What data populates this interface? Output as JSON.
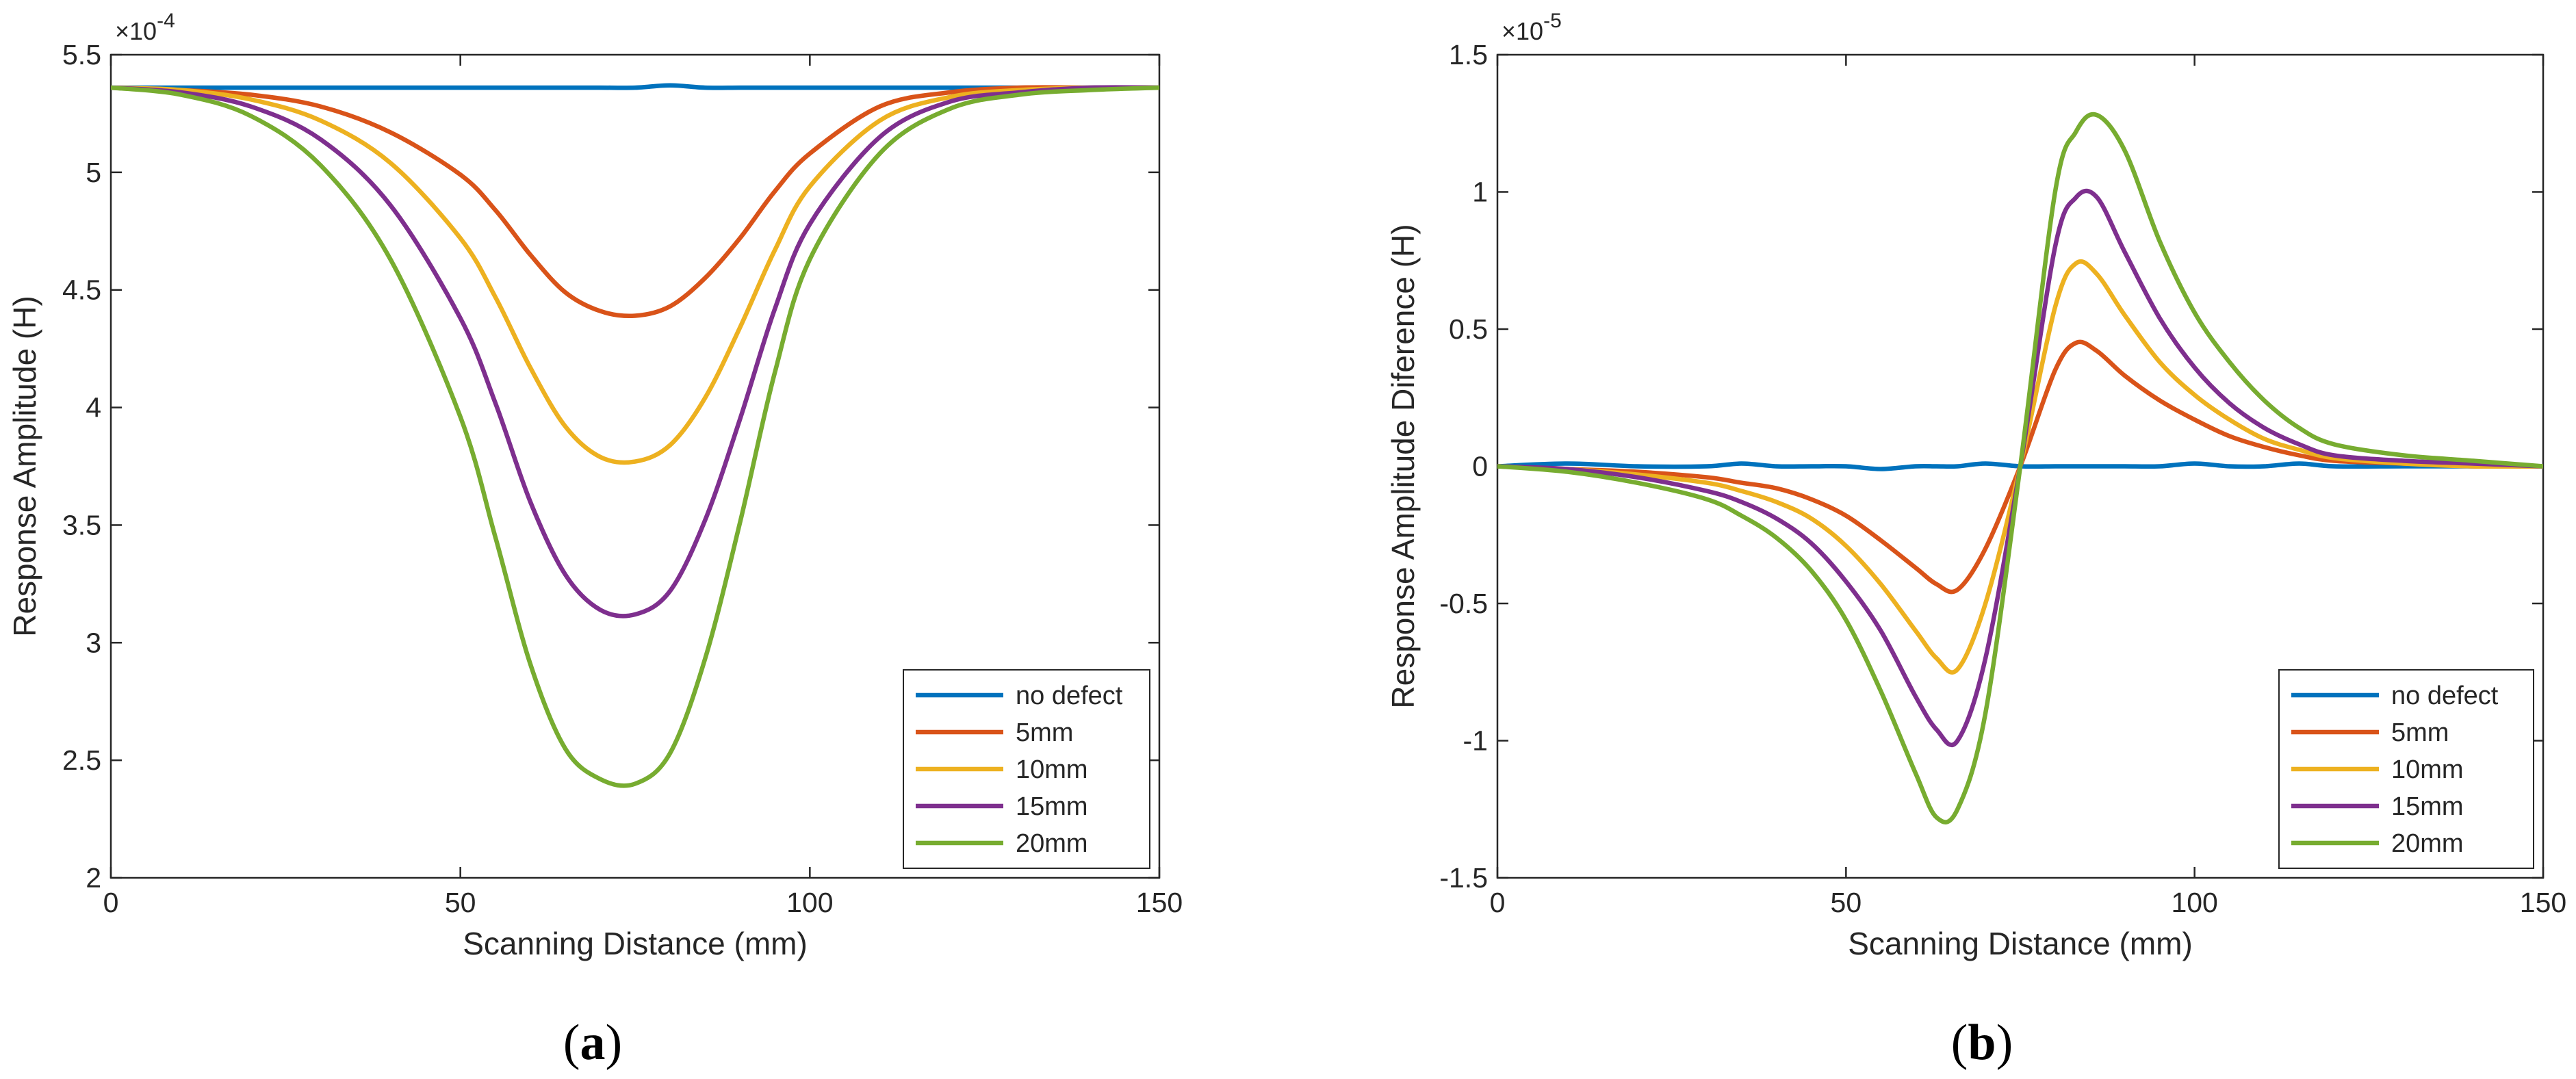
{
  "chart_data": [
    {
      "id": "a",
      "type": "line",
      "caption_paren_open": "(",
      "caption_letter": "a",
      "caption_paren_close": ")",
      "xlabel": "Scanning Distance (mm)",
      "ylabel": "Response Amplitude (H)",
      "exponent_base": "×10",
      "exponent_power": "-4",
      "xlim": [
        0,
        150
      ],
      "ylim": [
        2,
        5.5
      ],
      "xticks": [
        0,
        50,
        100,
        150
      ],
      "xtick_labels": [
        "0",
        "50",
        "100",
        "150"
      ],
      "yticks": [
        2,
        2.5,
        3,
        3.5,
        4,
        4.5,
        5,
        5.5
      ],
      "ytick_labels": [
        "2",
        "2.5",
        "3",
        "3.5",
        "4",
        "4.5",
        "5",
        "5.5"
      ],
      "grid": false,
      "legend_position": "bottom-right",
      "x": [
        0,
        10,
        20,
        30,
        40,
        50,
        55,
        60,
        65,
        70,
        75,
        80,
        85,
        90,
        95,
        100,
        110,
        120,
        130,
        140,
        150
      ],
      "series": [
        {
          "name": "no defect",
          "color": "#0072BD",
          "values": [
            5.36,
            5.36,
            5.36,
            5.36,
            5.36,
            5.36,
            5.36,
            5.36,
            5.36,
            5.36,
            5.36,
            5.37,
            5.36,
            5.36,
            5.36,
            5.36,
            5.36,
            5.36,
            5.36,
            5.36,
            5.36
          ]
        },
        {
          "name": "5mm",
          "color": "#D95319",
          "values": [
            5.36,
            5.35,
            5.33,
            5.28,
            5.17,
            4.99,
            4.84,
            4.65,
            4.49,
            4.41,
            4.39,
            4.43,
            4.55,
            4.72,
            4.92,
            5.08,
            5.28,
            5.34,
            5.36,
            5.36,
            5.36
          ]
        },
        {
          "name": "10mm",
          "color": "#EDB120",
          "values": [
            5.36,
            5.35,
            5.31,
            5.22,
            5.04,
            4.72,
            4.47,
            4.17,
            3.92,
            3.79,
            3.77,
            3.84,
            4.04,
            4.34,
            4.67,
            4.94,
            5.22,
            5.32,
            5.35,
            5.36,
            5.36
          ]
        },
        {
          "name": "15mm",
          "color": "#7E2F8E",
          "values": [
            5.36,
            5.34,
            5.28,
            5.14,
            4.86,
            4.38,
            4.02,
            3.6,
            3.29,
            3.14,
            3.12,
            3.22,
            3.52,
            3.95,
            4.42,
            4.78,
            5.15,
            5.3,
            5.34,
            5.36,
            5.36
          ]
        },
        {
          "name": "20mm",
          "color": "#77AC30",
          "values": [
            5.36,
            5.33,
            5.24,
            5.03,
            4.63,
            3.96,
            3.45,
            2.91,
            2.55,
            2.42,
            2.4,
            2.53,
            2.93,
            3.51,
            4.15,
            4.63,
            5.08,
            5.27,
            5.33,
            5.35,
            5.36
          ]
        }
      ]
    },
    {
      "id": "b",
      "type": "line",
      "caption_paren_open": "(",
      "caption_letter": "b",
      "caption_paren_close": ")",
      "xlabel": "Scanning Distance (mm)",
      "ylabel": "Response Amplitude Diference (H)",
      "exponent_base": "×10",
      "exponent_power": "-5",
      "xlim": [
        0,
        150
      ],
      "ylim": [
        -1.5,
        1.5
      ],
      "xticks": [
        0,
        50,
        100,
        150
      ],
      "xtick_labels": [
        "0",
        "50",
        "100",
        "150"
      ],
      "yticks": [
        -1.5,
        -1,
        -0.5,
        0,
        0.5,
        1,
        1.5
      ],
      "ytick_labels": [
        "-1.5",
        "-1",
        "-0.5",
        "0",
        "0.5",
        "1",
        "1.5"
      ],
      "grid": false,
      "legend_position": "bottom-right",
      "x": [
        0,
        10,
        20,
        30,
        35,
        40,
        45,
        50,
        55,
        60,
        63,
        66,
        70,
        75,
        80,
        83,
        86,
        90,
        95,
        100,
        105,
        110,
        115,
        120,
        130,
        140,
        150
      ],
      "series": [
        {
          "name": "no defect",
          "color": "#0072BD",
          "values": [
            0,
            0.01,
            0,
            0,
            0.01,
            0,
            0,
            0,
            -0.01,
            0,
            0,
            0,
            0.01,
            0,
            0,
            0,
            0,
            0,
            0,
            0.01,
            0,
            0,
            0.01,
            0,
            0,
            0,
            0
          ]
        },
        {
          "name": "5mm",
          "color": "#D95319",
          "values": [
            0,
            -0.01,
            -0.02,
            -0.04,
            -0.06,
            -0.08,
            -0.12,
            -0.18,
            -0.27,
            -0.37,
            -0.43,
            -0.45,
            -0.3,
            0,
            0.35,
            0.45,
            0.42,
            0.33,
            0.24,
            0.17,
            0.11,
            0.07,
            0.04,
            0.02,
            0.01,
            0,
            0
          ]
        },
        {
          "name": "10mm",
          "color": "#EDB120",
          "values": [
            0,
            -0.01,
            -0.03,
            -0.06,
            -0.09,
            -0.13,
            -0.19,
            -0.29,
            -0.43,
            -0.6,
            -0.7,
            -0.74,
            -0.5,
            0,
            0.58,
            0.74,
            0.7,
            0.55,
            0.38,
            0.26,
            0.17,
            0.1,
            0.06,
            0.03,
            0.01,
            0,
            0
          ]
        },
        {
          "name": "15mm",
          "color": "#7E2F8E",
          "values": [
            0,
            -0.01,
            -0.04,
            -0.09,
            -0.13,
            -0.19,
            -0.28,
            -0.42,
            -0.6,
            -0.84,
            -0.96,
            -1.0,
            -0.7,
            0,
            0.8,
            0.98,
            0.98,
            0.78,
            0.54,
            0.36,
            0.23,
            0.14,
            0.08,
            0.04,
            0.02,
            0.01,
            0
          ]
        },
        {
          "name": "20mm",
          "color": "#77AC30",
          "values": [
            0,
            -0.02,
            -0.06,
            -0.12,
            -0.18,
            -0.26,
            -0.38,
            -0.56,
            -0.82,
            -1.12,
            -1.28,
            -1.25,
            -0.9,
            0,
            1.0,
            1.22,
            1.28,
            1.15,
            0.82,
            0.56,
            0.38,
            0.24,
            0.14,
            0.08,
            0.04,
            0.02,
            0
          ]
        }
      ]
    }
  ]
}
